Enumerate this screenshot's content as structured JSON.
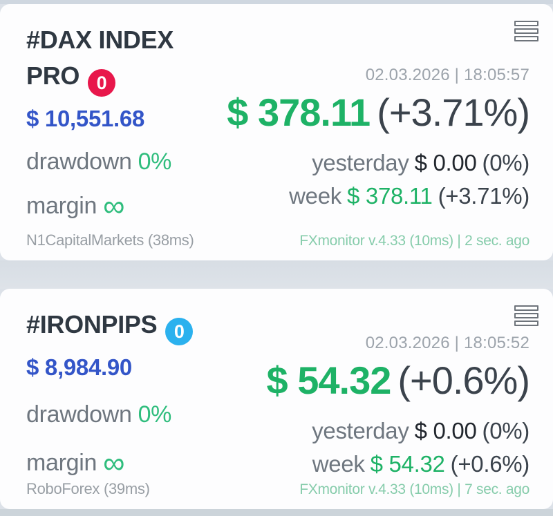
{
  "cards": [
    {
      "title": "#DAX INDEX PRO",
      "badge": {
        "value": "0",
        "color": "#e8174b"
      },
      "datetime": "02.03.2026 | 18:05:57",
      "balance": "$ 10,551.68",
      "main": {
        "value": "$ 378.11",
        "change": "(+3.71%)"
      },
      "drawdown": {
        "label": "drawdown",
        "value": "0%"
      },
      "margin": {
        "label": "margin",
        "value": "∞"
      },
      "yesterday": {
        "label": "yesterday",
        "value": "$ 0.00",
        "change": "(0%)"
      },
      "week": {
        "label": "week",
        "value": "$ 378.11",
        "change": "(+3.71%)"
      },
      "broker": "N1CapitalMarkets (38ms)",
      "monitor": "FXmonitor v.4.33 (10ms) | 2 sec. ago"
    },
    {
      "title": "#IRONPIPS",
      "badge": {
        "value": "0",
        "color": "#2bb1ee"
      },
      "datetime": "02.03.2026 | 18:05:52",
      "balance": "$ 8,984.90",
      "main": {
        "value": "$ 54.32",
        "change": "(+0.6%)"
      },
      "drawdown": {
        "label": "drawdown",
        "value": "0%"
      },
      "margin": {
        "label": "margin",
        "value": "∞"
      },
      "yesterday": {
        "label": "yesterday",
        "value": "$ 0.00",
        "change": "(0%)"
      },
      "week": {
        "label": "week",
        "value": "$ 54.32",
        "change": "(+0.6%)"
      },
      "broker": "RoboForex (39ms)",
      "monitor": "FXmonitor v.4.33 (10ms) | 7 sec. ago"
    }
  ],
  "colors": {
    "profit_green": "#1eb266",
    "accent_green": "#2fbd7d",
    "balance_blue": "#3355c8",
    "monitor_teal": "#86ccab",
    "badge_red": "#e8174b",
    "badge_blue": "#2bb1ee"
  }
}
